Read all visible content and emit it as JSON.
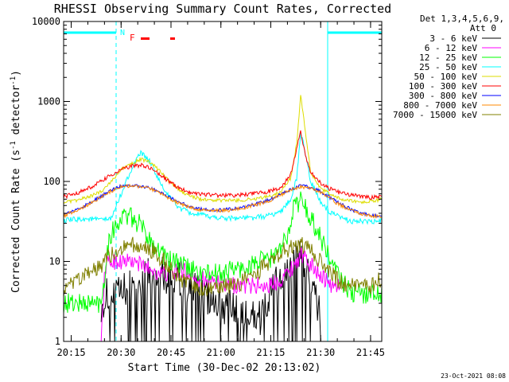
{
  "chart_data": {
    "type": "line",
    "title": "RHESSI Observing Summary Count Rates, Corrected",
    "xlabel": "Start Time (30-Dec-02 20:13:02)",
    "ylabel": "Corrected Count Rate (s",
    "ylabel_sup1": "-1",
    "ylabel_mid": " detector",
    "ylabel_sup2": "-1",
    "ylabel_end": ")",
    "yscale": "log",
    "ylim": [
      1,
      10000
    ],
    "xlim": [
      20.212,
      21.806
    ],
    "x_ticks": [
      20.25,
      20.5,
      20.75,
      21.0,
      21.25,
      21.5,
      21.75
    ],
    "x_tick_labels": [
      "20:15",
      "20:30",
      "20:45",
      "21:00",
      "21:15",
      "21:30",
      "21:45"
    ],
    "y_ticks": [
      1,
      10,
      100,
      1000,
      10000
    ],
    "y_tick_labels": [
      "1",
      "10",
      "100",
      "1000",
      "10000"
    ],
    "legend_header": [
      "Det 1,3,4,5,6,9,",
      "Att 0"
    ],
    "legend_position": "top-right outside",
    "timestamp": "23-Oct-2021 08:08",
    "flags": {
      "night_label": "N",
      "flare_label": "F",
      "night_intervals": [
        [
          20.212,
          20.475
        ],
        [
          21.535,
          21.806
        ]
      ],
      "saa_lines": [
        20.212,
        20.475,
        21.535,
        21.806
      ]
    },
    "series": [
      {
        "name": "3 - 6 keV",
        "color": "#000000",
        "x": [
          20.4,
          20.44,
          20.47,
          20.5,
          20.55,
          20.6,
          20.65,
          20.7,
          20.75,
          20.8,
          20.85,
          20.9,
          20.95,
          21.0,
          21.05,
          21.1,
          21.15,
          21.2,
          21.25,
          21.3,
          21.35,
          21.4,
          21.44,
          21.47,
          21.5
        ],
        "y": [
          3,
          4,
          3.5,
          4,
          5,
          6,
          7,
          7,
          6.5,
          5.5,
          4.5,
          4,
          3.5,
          3,
          2.5,
          2,
          2,
          2,
          4,
          6,
          8,
          12,
          6,
          4,
          2
        ]
      },
      {
        "name": "6 - 12 keV",
        "color": "#ff00ff",
        "x": [
          20.4,
          20.42,
          20.45,
          20.5,
          20.55,
          20.6,
          20.65,
          20.7,
          20.75,
          20.8,
          20.85,
          20.9,
          20.95,
          21.0,
          21.05,
          21.1,
          21.15,
          21.2,
          21.25,
          21.3,
          21.35,
          21.4,
          21.45,
          21.5,
          21.55,
          21.6
        ],
        "y": [
          1,
          9,
          10,
          10,
          10,
          9,
          8,
          7,
          7,
          8,
          7,
          6,
          6,
          5,
          5,
          5,
          5,
          5,
          5,
          6,
          8,
          12,
          9,
          7,
          5,
          5
        ]
      },
      {
        "name": "12 - 25 keV",
        "color": "#00ff00",
        "x": [
          20.212,
          20.22,
          20.3,
          20.4,
          20.44,
          20.48,
          20.52,
          20.55,
          20.6,
          20.65,
          20.7,
          20.75,
          20.8,
          20.85,
          20.9,
          20.95,
          21.0,
          21.05,
          21.1,
          21.15,
          21.2,
          21.25,
          21.3,
          21.33,
          21.36,
          21.4,
          21.45,
          21.5,
          21.55,
          21.6,
          21.65,
          21.7,
          21.75,
          21.806
        ],
        "y": [
          3,
          3,
          3,
          3,
          20,
          30,
          38,
          35,
          28,
          18,
          13,
          10,
          9,
          8,
          7,
          7,
          7,
          8,
          8,
          9,
          10,
          11,
          14,
          20,
          45,
          60,
          35,
          20,
          10,
          6,
          4,
          4,
          4,
          4
        ]
      },
      {
        "name": "25 - 50 keV",
        "color": "#00ffff",
        "x": [
          20.212,
          20.25,
          20.3,
          20.35,
          20.4,
          20.45,
          20.5,
          20.55,
          20.6,
          20.65,
          20.7,
          20.75,
          20.8,
          20.85,
          20.9,
          20.95,
          21.0,
          21.05,
          21.1,
          21.15,
          21.2,
          21.25,
          21.3,
          21.35,
          21.38,
          21.4,
          21.42,
          21.45,
          21.5,
          21.55,
          21.6,
          21.65,
          21.7,
          21.75,
          21.806
        ],
        "y": [
          32,
          33,
          34,
          34,
          33,
          34,
          70,
          140,
          230,
          170,
          90,
          60,
          45,
          40,
          38,
          36,
          35,
          35,
          35,
          35,
          36,
          38,
          42,
          60,
          110,
          400,
          250,
          100,
          55,
          40,
          35,
          32,
          32,
          31,
          32
        ]
      },
      {
        "name": "50 - 100 keV",
        "color": "#dddd00",
        "x": [
          20.212,
          20.25,
          20.3,
          20.35,
          20.4,
          20.45,
          20.5,
          20.55,
          20.6,
          20.65,
          20.7,
          20.75,
          20.8,
          20.85,
          20.9,
          20.95,
          21.0,
          21.05,
          21.1,
          21.15,
          21.2,
          21.25,
          21.3,
          21.35,
          21.38,
          21.4,
          21.42,
          21.45,
          21.5,
          21.55,
          21.6,
          21.65,
          21.7,
          21.75,
          21.806
        ],
        "y": [
          55,
          56,
          60,
          66,
          75,
          100,
          140,
          170,
          190,
          170,
          130,
          95,
          75,
          65,
          60,
          58,
          58,
          58,
          58,
          60,
          62,
          66,
          75,
          110,
          300,
          1200,
          500,
          130,
          80,
          70,
          60,
          57,
          55,
          56,
          60
        ]
      },
      {
        "name": "100 - 300 keV",
        "color": "#ff0000",
        "x": [
          20.212,
          20.25,
          20.3,
          20.35,
          20.4,
          20.45,
          20.5,
          20.55,
          20.6,
          20.65,
          20.7,
          20.75,
          20.8,
          20.85,
          20.9,
          20.95,
          21.0,
          21.05,
          21.1,
          21.15,
          21.2,
          21.25,
          21.3,
          21.35,
          21.38,
          21.4,
          21.42,
          21.45,
          21.5,
          21.55,
          21.6,
          21.65,
          21.7,
          21.75,
          21.806
        ],
        "y": [
          65,
          68,
          75,
          85,
          100,
          120,
          140,
          155,
          160,
          145,
          120,
          95,
          80,
          73,
          70,
          68,
          67,
          67,
          68,
          70,
          72,
          76,
          85,
          120,
          260,
          420,
          230,
          130,
          95,
          80,
          72,
          68,
          65,
          63,
          65
        ]
      },
      {
        "name": "300 - 800 keV",
        "color": "#0000ff",
        "x": [
          20.212,
          20.25,
          20.3,
          20.35,
          20.4,
          20.45,
          20.5,
          20.55,
          20.6,
          20.65,
          20.7,
          20.75,
          20.8,
          20.85,
          20.9,
          20.95,
          21.0,
          21.05,
          21.1,
          21.15,
          21.2,
          21.25,
          21.3,
          21.35,
          21.4,
          21.45,
          21.5,
          21.55,
          21.6,
          21.65,
          21.7,
          21.75,
          21.806
        ],
        "y": [
          38,
          42,
          47,
          55,
          65,
          78,
          88,
          90,
          88,
          82,
          72,
          62,
          54,
          48,
          45,
          44,
          44,
          45,
          47,
          50,
          54,
          60,
          70,
          80,
          88,
          85,
          75,
          62,
          52,
          45,
          40,
          38,
          37
        ]
      },
      {
        "name": "800 - 7000 keV",
        "color": "#ff8800",
        "x": [
          20.212,
          20.25,
          20.3,
          20.35,
          20.4,
          20.45,
          20.5,
          20.55,
          20.6,
          20.65,
          20.7,
          20.75,
          20.8,
          20.85,
          20.9,
          20.95,
          21.0,
          21.05,
          21.1,
          21.15,
          21.2,
          21.25,
          21.3,
          21.35,
          21.4,
          21.45,
          21.5,
          21.55,
          21.6,
          21.65,
          21.7,
          21.75,
          21.806
        ],
        "y": [
          37,
          41,
          46,
          54,
          64,
          76,
          86,
          88,
          86,
          80,
          70,
          60,
          52,
          47,
          44,
          43,
          43,
          44,
          46,
          49,
          53,
          58,
          68,
          78,
          86,
          83,
          73,
          60,
          50,
          44,
          39,
          37,
          36
        ]
      },
      {
        "name": "7000 - 15000 keV",
        "color": "#808000",
        "x": [
          20.212,
          20.25,
          20.3,
          20.35,
          20.4,
          20.45,
          20.5,
          20.55,
          20.6,
          20.65,
          20.7,
          20.75,
          20.8,
          20.85,
          20.9,
          20.95,
          21.0,
          21.05,
          21.1,
          21.15,
          21.2,
          21.25,
          21.3,
          21.35,
          21.4,
          21.45,
          21.5,
          21.55,
          21.6,
          21.65,
          21.7,
          21.75,
          21.806
        ],
        "y": [
          4.5,
          5,
          6,
          7.5,
          9,
          12,
          15,
          16,
          15.5,
          14,
          11,
          8,
          6,
          5,
          4.5,
          4.3,
          4.5,
          5,
          5.5,
          6.5,
          8,
          10,
          13,
          15,
          16,
          14,
          10,
          7,
          5.5,
          5,
          4.5,
          5,
          6
        ]
      }
    ]
  }
}
